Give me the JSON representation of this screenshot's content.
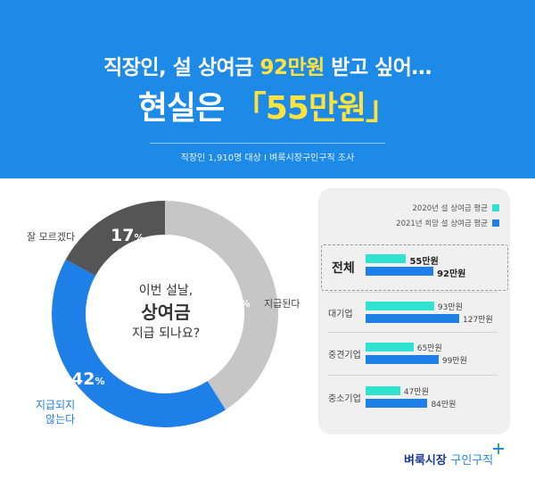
{
  "header": {
    "line1_pre": "직장인, 설 상여금 ",
    "line1_highlight": "92만원",
    "line1_post": " 받고 싶어…",
    "line2_pre": "현실은 ",
    "line2_highlight": "「55만원」",
    "source": "직장인 1,910명 대상  I  벼룩시장구인구직 조사"
  },
  "colors": {
    "header_blue": "#1e8ae8",
    "highlight_yellow": "#ffe23d",
    "donut_gray": "#c6c6c6",
    "donut_blue": "#1e7fe8",
    "donut_dark": "#555555",
    "bar_2020": "#2fe3d0",
    "bar_2021": "#1e7fe8"
  },
  "donut": {
    "question_line1": "이번 설날,",
    "question_line2": "상여금",
    "question_line3": "지급 되나요?",
    "slices": [
      {
        "label": "지급된다",
        "value": 41,
        "pct_text": "41",
        "unit": "%"
      },
      {
        "label_line1": "지급되지",
        "label_line2": "않는다",
        "value": 42,
        "pct_text": "42",
        "unit": "%"
      },
      {
        "label": "잘 모르겠다",
        "value": 17,
        "pct_text": "17",
        "unit": "%"
      }
    ]
  },
  "chart_data": [
    {
      "type": "pie",
      "categories": [
        "지급된다",
        "지급되지 않는다",
        "잘 모르겠다"
      ],
      "values": [
        41,
        42,
        17
      ],
      "unit": "%"
    },
    {
      "type": "bar",
      "categories": [
        "전체",
        "대기업",
        "중견기업",
        "중소기업"
      ],
      "series": [
        {
          "name": "2020년 설 상여금 평균",
          "values": [
            55,
            93,
            65,
            47
          ]
        },
        {
          "name": "2021년 희망 설 상여금 평균",
          "values": [
            92,
            127,
            99,
            84
          ]
        }
      ],
      "value_labels": [
        [
          "55만원",
          "93만원",
          "65만원",
          "47만원"
        ],
        [
          "92만원",
          "127만원",
          "99만원",
          "84만원"
        ]
      ],
      "xlim": [
        0,
        127
      ],
      "legend": "top-right"
    }
  ],
  "logo": {
    "part1": "벼룩시장 ",
    "part2": "구인구직"
  }
}
